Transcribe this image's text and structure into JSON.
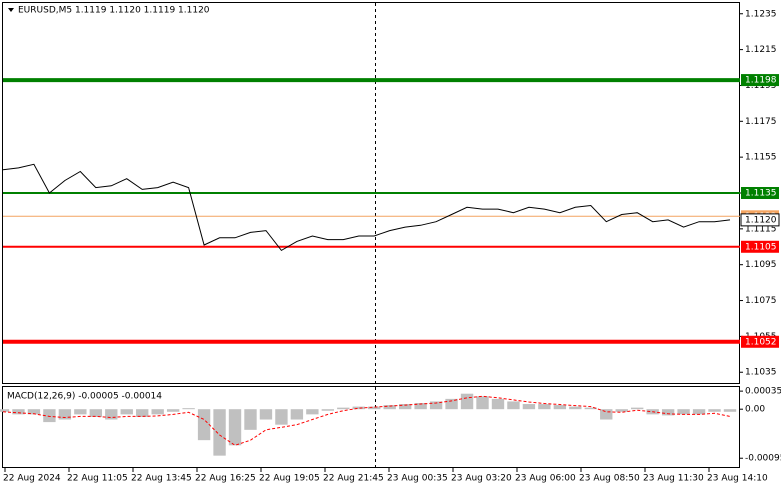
{
  "chart_data": [
    {
      "type": "line",
      "title": "EURUSD,M5  1.1119 1.1120 1.1119 1.1120",
      "color": "#000000",
      "values": [
        1.1148,
        1.1149,
        1.1151,
        1.1135,
        1.1142,
        1.1147,
        1.1138,
        1.1139,
        1.1143,
        1.1137,
        1.1138,
        1.1141,
        1.1138,
        1.1106,
        1.111,
        1.111,
        1.1113,
        1.1114,
        1.1103,
        1.1108,
        1.1111,
        1.1109,
        1.1109,
        1.1111,
        1.1111,
        1.1114,
        1.1116,
        1.1117,
        1.1119,
        1.1123,
        1.1127,
        1.1126,
        1.1126,
        1.1124,
        1.1127,
        1.1126,
        1.1124,
        1.1127,
        1.1128,
        1.1119,
        1.1123,
        1.1124,
        1.1119,
        1.112,
        1.1116,
        1.1119,
        1.1119,
        1.112
      ],
      "ylim": [
        1.1029,
        1.1241
      ],
      "yticks": [
        1.1235,
        1.1215,
        1.1195,
        1.1175,
        1.1155,
        1.1135,
        1.1115,
        1.1095,
        1.1075,
        1.1055,
        1.1035
      ],
      "levels": [
        {
          "value": 1.1198,
          "color": "#008000",
          "width": 4
        },
        {
          "value": 1.1135,
          "color": "#008000",
          "width": 2
        },
        {
          "value": 1.1105,
          "color": "#ff0000",
          "width": 2
        },
        {
          "value": 1.1052,
          "color": "#ff0000",
          "width": 4
        }
      ],
      "ask": {
        "value": 1.1122,
        "color": "#f4a460"
      },
      "bid": {
        "value": 1.112,
        "label": "1.1120"
      },
      "x_labels": [
        "22 Aug 2024",
        "22 Aug 11:05",
        "22 Aug 13:45",
        "22 Aug 16:25",
        "22 Aug 19:05",
        "22 Aug 21:45",
        "23 Aug 00:35",
        "23 Aug 03:20",
        "23 Aug 06:00",
        "23 Aug 08:50",
        "23 Aug 11:30",
        "23 Aug 14:10"
      ]
    },
    {
      "type": "macd",
      "title": "MACD(12,26,9) -0.00005 -0.00014",
      "histogram": {
        "color": "#c0c0c0",
        "values": [
          -5e-05,
          -0.0001,
          -0.0001,
          -0.00025,
          -0.0002,
          -0.0001,
          -0.00015,
          -0.0002,
          -0.0001,
          -0.00015,
          -0.0001,
          -5e-05,
          2e-05,
          -0.0006,
          -0.0009,
          -0.0007,
          -0.0004,
          -0.0002,
          -0.0003,
          -0.0002,
          -0.0001,
          -3e-05,
          3e-05,
          5e-05,
          5e-05,
          8e-05,
          0.0001,
          0.00012,
          0.00015,
          0.0002,
          0.0003,
          0.00025,
          0.0002,
          0.00015,
          0.0001,
          0.0001,
          8e-05,
          5e-05,
          3e-05,
          -0.0002,
          -5e-05,
          3e-05,
          -0.0001,
          -0.00012,
          -0.0001,
          -0.0001,
          -5e-05,
          -5e-05
        ]
      },
      "signal": {
        "color": "#ff0000",
        "values": [
          -5e-05,
          -7e-05,
          -9e-05,
          -0.00014,
          -0.00016,
          -0.00014,
          -0.00014,
          -0.00016,
          -0.00014,
          -0.00014,
          -0.00013,
          -0.0001,
          -6e-05,
          -0.0002,
          -0.0005,
          -0.0007,
          -0.0006,
          -0.0004,
          -0.00035,
          -0.0003,
          -0.0002,
          -0.0001,
          -3e-05,
          2e-05,
          4e-05,
          6e-05,
          8e-05,
          0.0001,
          0.00012,
          0.00016,
          0.00022,
          0.00025,
          0.00022,
          0.00018,
          0.00014,
          0.00011,
          9e-05,
          7e-05,
          5e-05,
          -5e-05,
          -6e-05,
          -2e-05,
          -5e-05,
          -9e-05,
          -0.0001,
          -0.0001,
          -8e-05,
          -0.00014
        ]
      },
      "ylim": [
        -0.00112,
        0.00043
      ],
      "yticks": [
        0.00035,
        {
          "value": 0,
          "label": "0.00"
        },
        -0.00095
      ]
    }
  ]
}
